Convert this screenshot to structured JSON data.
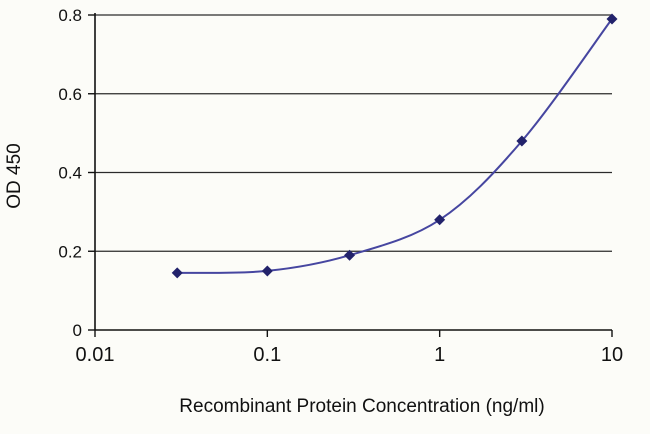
{
  "chart_data": {
    "type": "line",
    "title": "",
    "xlabel": "Recombinant Protein Concentration (ng/ml)",
    "ylabel": "OD 450",
    "x_scale": "log",
    "xlim": [
      0.01,
      10
    ],
    "ylim": [
      0,
      0.8
    ],
    "x": [
      0.03,
      0.1,
      0.3,
      1,
      3,
      10
    ],
    "series": [
      {
        "name": "OD 450",
        "values": [
          0.145,
          0.15,
          0.19,
          0.28,
          0.48,
          0.79
        ]
      }
    ],
    "x_ticks": [
      {
        "value": 0.01,
        "label": "0.01"
      },
      {
        "value": 0.1,
        "label": "0.1"
      },
      {
        "value": 1,
        "label": "1"
      },
      {
        "value": 10,
        "label": "10"
      }
    ],
    "y_ticks": [
      {
        "value": 0,
        "label": "0"
      },
      {
        "value": 0.2,
        "label": "0.2"
      },
      {
        "value": 0.4,
        "label": "0.4"
      },
      {
        "value": 0.6,
        "label": "0.6"
      },
      {
        "value": 0.8,
        "label": "0.8"
      }
    ],
    "grid": "horizontal",
    "legend": "none",
    "colors": {
      "line": "#4646a0",
      "marker": "#22226b",
      "grid": "#2b2b2b",
      "axis": "#111111",
      "background": "#fcfcf8"
    },
    "marker_shape": "diamond"
  }
}
